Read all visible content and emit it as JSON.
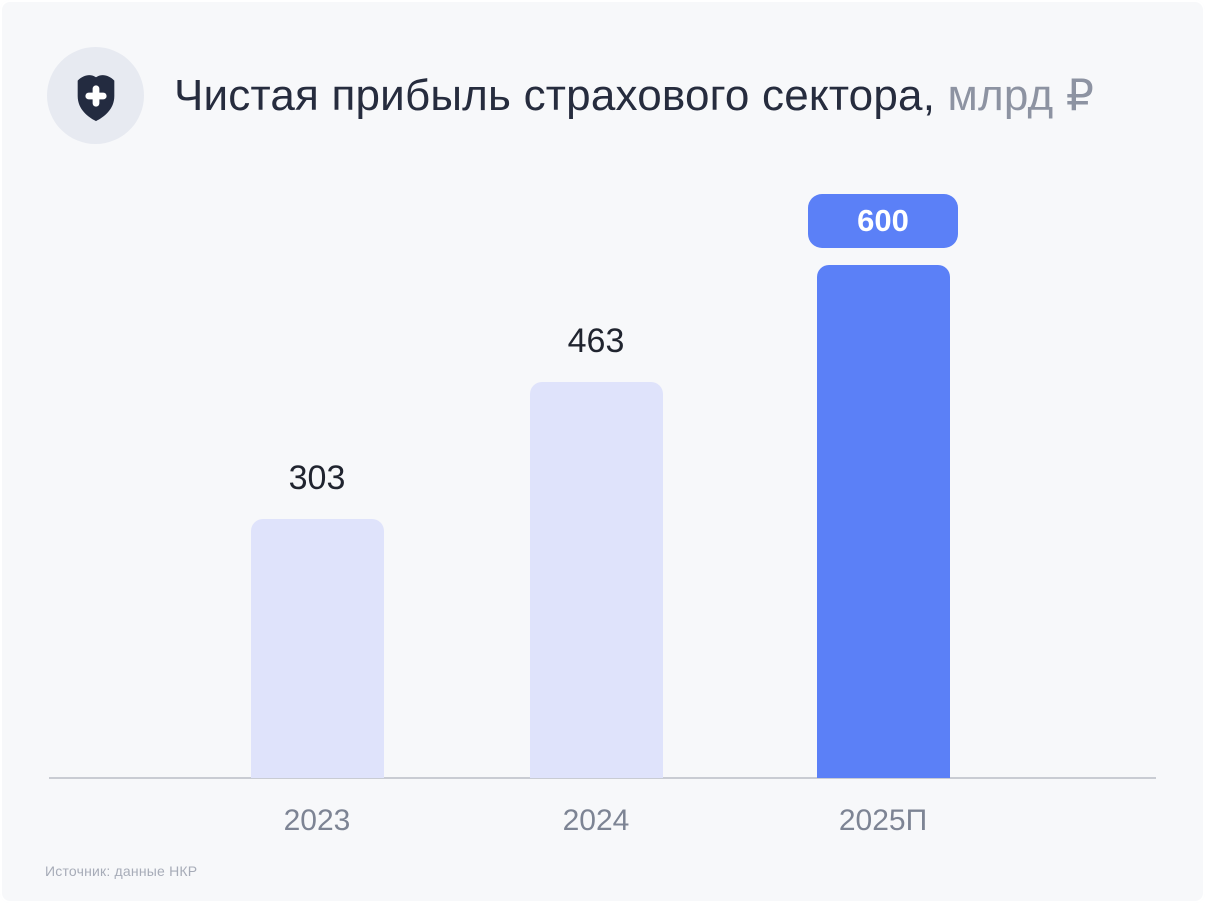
{
  "header": {
    "title_main": "Чистая прибыль страхового сектора,",
    "title_unit": " млрд ₽",
    "icon": "shield-plus-icon"
  },
  "chart_data": {
    "type": "bar",
    "title": "Чистая прибыль страхового сектора, млрд ₽",
    "categories": [
      "2023",
      "2024",
      "2025П"
    ],
    "values": [
      303,
      463,
      600
    ],
    "highlighted_index": 2,
    "xlabel": "",
    "ylabel": "млрд ₽",
    "ylim": [
      0,
      600
    ],
    "grid": false,
    "legend": "none",
    "colors": {
      "bar": "#dfe3fb",
      "bar_highlight": "#5b80f7",
      "badge_bg": "#5b80f7",
      "badge_text": "#ffffff",
      "value_text": "#20242f",
      "axis_line": "#c9ccd3",
      "tick_text": "#7d8494",
      "background": "#f7f8fa"
    }
  },
  "footer": {
    "source": "Источник: данные НКР"
  }
}
